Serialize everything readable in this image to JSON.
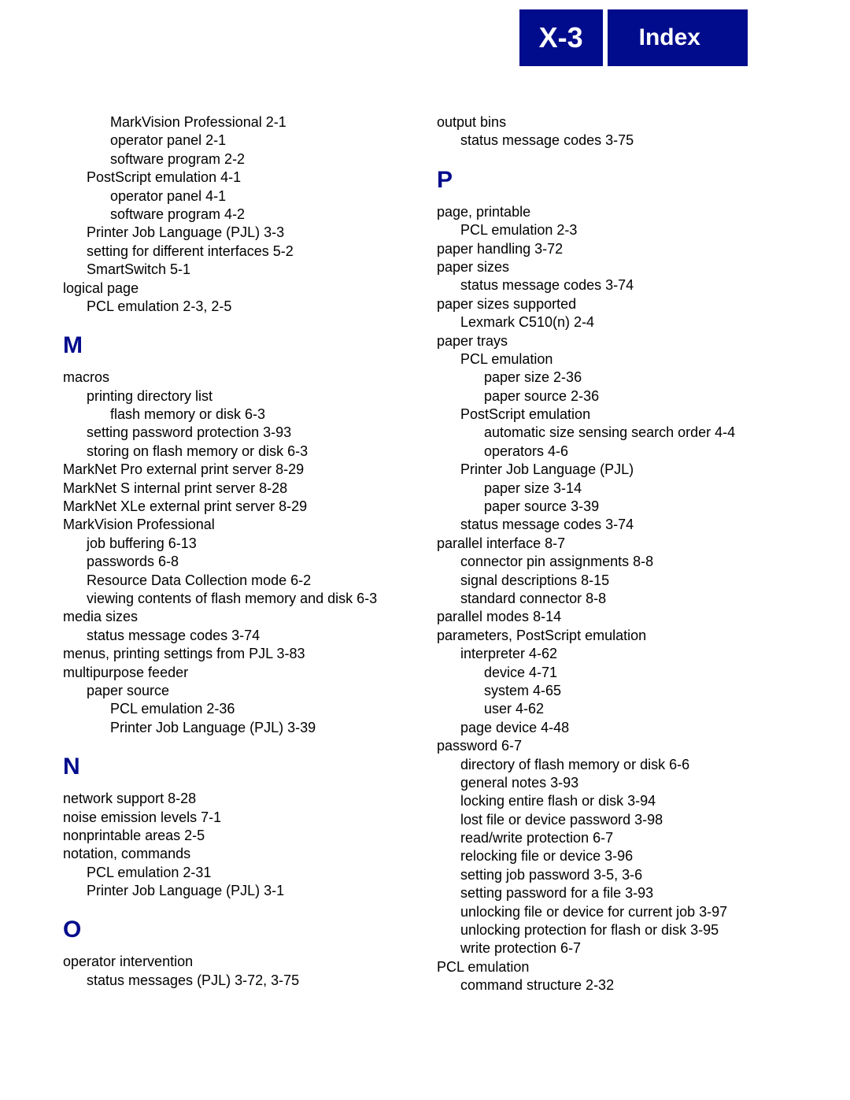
{
  "header": {
    "left": "X-3",
    "right": "Index"
  },
  "colors": {
    "header_bg": "#000c8c",
    "header_text": "#ffffff",
    "letter": "#000c8c",
    "body_text": "#000000",
    "page_bg": "#ffffff"
  },
  "columns": [
    {
      "items": [
        {
          "type": "entry",
          "level": 2,
          "text": "MarkVision Professional 2-1"
        },
        {
          "type": "entry",
          "level": 2,
          "text": "operator panel 2-1"
        },
        {
          "type": "entry",
          "level": 2,
          "text": "software program 2-2"
        },
        {
          "type": "entry",
          "level": 1,
          "text": "PostScript emulation 4-1"
        },
        {
          "type": "entry",
          "level": 2,
          "text": "operator panel 4-1"
        },
        {
          "type": "entry",
          "level": 2,
          "text": "software program 4-2"
        },
        {
          "type": "entry",
          "level": 1,
          "text": "Printer Job Language (PJL) 3-3"
        },
        {
          "type": "entry",
          "level": 1,
          "text": "setting for different interfaces 5-2"
        },
        {
          "type": "entry",
          "level": 1,
          "text": "SmartSwitch 5-1"
        },
        {
          "type": "entry",
          "level": 0,
          "text": "logical page"
        },
        {
          "type": "entry",
          "level": 1,
          "text": "PCL emulation 2-3, 2-5"
        },
        {
          "type": "letter",
          "text": "M"
        },
        {
          "type": "entry",
          "level": 0,
          "text": "macros"
        },
        {
          "type": "entry",
          "level": 1,
          "text": "printing directory list"
        },
        {
          "type": "entry",
          "level": 2,
          "text": "flash memory or disk 6-3"
        },
        {
          "type": "entry",
          "level": 1,
          "text": "setting password protection 3-93"
        },
        {
          "type": "entry",
          "level": 1,
          "text": "storing on flash memory or disk 6-3"
        },
        {
          "type": "entry",
          "level": 0,
          "text": "MarkNet Pro external print server 8-29"
        },
        {
          "type": "entry",
          "level": 0,
          "text": "MarkNet S internal print server 8-28"
        },
        {
          "type": "entry",
          "level": 0,
          "text": "MarkNet XLe external print server 8-29"
        },
        {
          "type": "entry",
          "level": 0,
          "text": "MarkVision Professional"
        },
        {
          "type": "entry",
          "level": 1,
          "text": "job buffering 6-13"
        },
        {
          "type": "entry",
          "level": 1,
          "text": "passwords 6-8"
        },
        {
          "type": "entry",
          "level": 1,
          "text": "Resource Data Collection mode 6-2"
        },
        {
          "type": "entry",
          "level": 1,
          "text": "viewing contents of flash memory and disk 6-3"
        },
        {
          "type": "entry",
          "level": 0,
          "text": "media sizes"
        },
        {
          "type": "entry",
          "level": 1,
          "text": "status message codes 3-74"
        },
        {
          "type": "entry",
          "level": 0,
          "text": "menus, printing settings from PJL 3-83"
        },
        {
          "type": "entry",
          "level": 0,
          "text": "multipurpose feeder"
        },
        {
          "type": "entry",
          "level": 1,
          "text": "paper source"
        },
        {
          "type": "entry",
          "level": 2,
          "text": "PCL emulation 2-36"
        },
        {
          "type": "entry",
          "level": 2,
          "text": "Printer Job Language (PJL) 3-39"
        },
        {
          "type": "letter",
          "text": "N"
        },
        {
          "type": "entry",
          "level": 0,
          "text": "network support 8-28"
        },
        {
          "type": "entry",
          "level": 0,
          "text": "noise emission levels 7-1"
        },
        {
          "type": "entry",
          "level": 0,
          "text": "nonprintable areas 2-5"
        },
        {
          "type": "entry",
          "level": 0,
          "text": "notation, commands"
        },
        {
          "type": "entry",
          "level": 1,
          "text": "PCL emulation 2-31"
        },
        {
          "type": "entry",
          "level": 1,
          "text": "Printer Job Language (PJL) 3-1"
        },
        {
          "type": "letter",
          "text": "O"
        },
        {
          "type": "entry",
          "level": 0,
          "text": "operator intervention"
        },
        {
          "type": "entry",
          "level": 1,
          "text": "status messages (PJL) 3-72, 3-75"
        }
      ]
    },
    {
      "items": [
        {
          "type": "entry",
          "level": 0,
          "text": "output bins"
        },
        {
          "type": "entry",
          "level": 1,
          "text": "status message codes 3-75"
        },
        {
          "type": "letter",
          "text": "P"
        },
        {
          "type": "entry",
          "level": 0,
          "text": "page, printable"
        },
        {
          "type": "entry",
          "level": 1,
          "text": "PCL emulation 2-3"
        },
        {
          "type": "entry",
          "level": 0,
          "text": "paper handling 3-72"
        },
        {
          "type": "entry",
          "level": 0,
          "text": "paper sizes"
        },
        {
          "type": "entry",
          "level": 1,
          "text": "status message codes 3-74"
        },
        {
          "type": "entry",
          "level": 0,
          "text": "paper sizes supported"
        },
        {
          "type": "entry",
          "level": 1,
          "text": "Lexmark C510(n) 2-4"
        },
        {
          "type": "entry",
          "level": 0,
          "text": "paper trays"
        },
        {
          "type": "entry",
          "level": 1,
          "text": "PCL emulation"
        },
        {
          "type": "entry",
          "level": 2,
          "text": "paper size 2-36"
        },
        {
          "type": "entry",
          "level": 2,
          "text": "paper source 2-36"
        },
        {
          "type": "entry",
          "level": 1,
          "text": "PostScript emulation"
        },
        {
          "type": "entry",
          "level": 2,
          "text": "automatic size sensing search order 4-4"
        },
        {
          "type": "entry",
          "level": 2,
          "text": "operators 4-6"
        },
        {
          "type": "entry",
          "level": 1,
          "text": "Printer Job Language (PJL)"
        },
        {
          "type": "entry",
          "level": 2,
          "text": "paper size 3-14"
        },
        {
          "type": "entry",
          "level": 2,
          "text": "paper source 3-39"
        },
        {
          "type": "entry",
          "level": 1,
          "text": "status message codes 3-74"
        },
        {
          "type": "entry",
          "level": 0,
          "text": "parallel interface 8-7"
        },
        {
          "type": "entry",
          "level": 1,
          "text": "connector pin assignments 8-8"
        },
        {
          "type": "entry",
          "level": 1,
          "text": "signal descriptions 8-15"
        },
        {
          "type": "entry",
          "level": 1,
          "text": "standard connector 8-8"
        },
        {
          "type": "entry",
          "level": 0,
          "text": "parallel modes 8-14"
        },
        {
          "type": "entry",
          "level": 0,
          "text": "parameters, PostScript emulation"
        },
        {
          "type": "entry",
          "level": 1,
          "text": "interpreter 4-62"
        },
        {
          "type": "entry",
          "level": 2,
          "text": "device 4-71"
        },
        {
          "type": "entry",
          "level": 2,
          "text": "system 4-65"
        },
        {
          "type": "entry",
          "level": 2,
          "text": "user 4-62"
        },
        {
          "type": "entry",
          "level": 1,
          "text": "page device 4-48"
        },
        {
          "type": "entry",
          "level": 0,
          "text": "password 6-7"
        },
        {
          "type": "entry",
          "level": 1,
          "text": "directory of flash memory or disk 6-6"
        },
        {
          "type": "entry",
          "level": 1,
          "text": "general notes 3-93"
        },
        {
          "type": "entry",
          "level": 1,
          "text": "locking entire flash or disk 3-94"
        },
        {
          "type": "entry",
          "level": 1,
          "text": "lost file or device password 3-98"
        },
        {
          "type": "entry",
          "level": 1,
          "text": "read/write protection 6-7"
        },
        {
          "type": "entry",
          "level": 1,
          "text": "relocking file or device 3-96"
        },
        {
          "type": "entry",
          "level": 1,
          "text": "setting job password 3-5, 3-6"
        },
        {
          "type": "entry",
          "level": 1,
          "text": "setting password for a file 3-93"
        },
        {
          "type": "entry",
          "level": 1,
          "text": "unlocking file or device for current job 3-97"
        },
        {
          "type": "entry",
          "level": 1,
          "text": "unlocking protection for flash or disk 3-95"
        },
        {
          "type": "entry",
          "level": 1,
          "text": "write protection 6-7"
        },
        {
          "type": "entry",
          "level": 0,
          "text": "PCL emulation"
        },
        {
          "type": "entry",
          "level": 1,
          "text": "command structure 2-32"
        }
      ]
    }
  ]
}
